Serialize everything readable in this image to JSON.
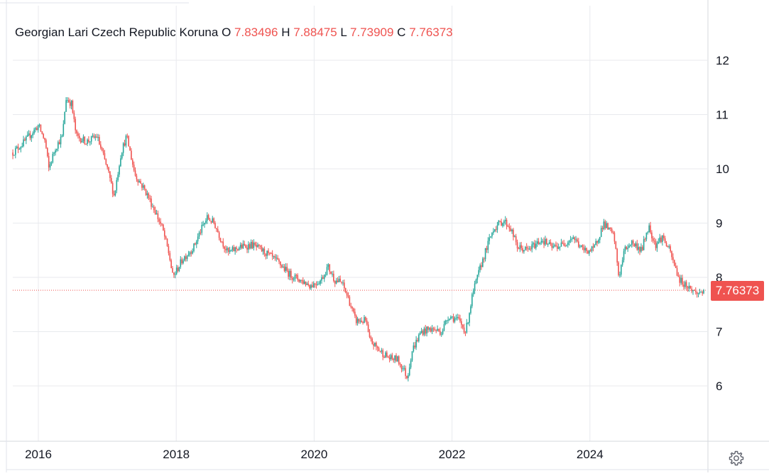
{
  "legend": {
    "symbol": "Georgian Lari Czech Republic Koruna",
    "o_label": "O",
    "o_value": "7.83496",
    "h_label": "H",
    "h_value": "7.88475",
    "l_label": "L",
    "l_value": "7.73909",
    "c_label": "C",
    "c_value": "7.76373"
  },
  "price_label": "7.76373",
  "colors": {
    "up": "#26a69a",
    "down": "#ef5350",
    "grid": "#e8eaee",
    "axis_text": "#131722"
  },
  "icons": {
    "settings": "gear-icon"
  },
  "chart_data": {
    "type": "candlestick",
    "title": "Georgian Lari Czech Republic Koruna",
    "last_close": 7.76373,
    "ylim": [
      5,
      13
    ],
    "xlim": [
      2015.63,
      2025.85
    ],
    "y_ticks": [
      6,
      7,
      8,
      9,
      10,
      11,
      12
    ],
    "x_ticks": [
      2016,
      2018,
      2020,
      2022,
      2024
    ],
    "x_tick_labels": [
      "2016",
      "2018",
      "2020",
      "2022",
      "2024"
    ],
    "grid": true,
    "series_path": [
      [
        2015.63,
        10.3
      ],
      [
        2015.8,
        10.5
      ],
      [
        2016.0,
        10.8
      ],
      [
        2016.1,
        10.5
      ],
      [
        2016.15,
        10.0
      ],
      [
        2016.25,
        10.4
      ],
      [
        2016.35,
        10.6
      ],
      [
        2016.4,
        11.3
      ],
      [
        2016.48,
        11.2
      ],
      [
        2016.55,
        10.6
      ],
      [
        2016.7,
        10.5
      ],
      [
        2016.85,
        10.6
      ],
      [
        2017.0,
        10.0
      ],
      [
        2017.1,
        9.5
      ],
      [
        2017.2,
        10.3
      ],
      [
        2017.28,
        10.6
      ],
      [
        2017.4,
        9.9
      ],
      [
        2017.55,
        9.6
      ],
      [
        2017.7,
        9.2
      ],
      [
        2017.8,
        8.9
      ],
      [
        2017.9,
        8.4
      ],
      [
        2017.95,
        8.0
      ],
      [
        2018.1,
        8.35
      ],
      [
        2018.25,
        8.55
      ],
      [
        2018.35,
        8.85
      ],
      [
        2018.45,
        9.1
      ],
      [
        2018.55,
        9.0
      ],
      [
        2018.65,
        8.7
      ],
      [
        2018.75,
        8.45
      ],
      [
        2018.9,
        8.55
      ],
      [
        2019.1,
        8.6
      ],
      [
        2019.3,
        8.45
      ],
      [
        2019.5,
        8.25
      ],
      [
        2019.65,
        8.05
      ],
      [
        2019.8,
        7.95
      ],
      [
        2019.95,
        7.85
      ],
      [
        2020.1,
        7.95
      ],
      [
        2020.2,
        8.2
      ],
      [
        2020.3,
        7.95
      ],
      [
        2020.4,
        7.9
      ],
      [
        2020.5,
        7.6
      ],
      [
        2020.6,
        7.2
      ],
      [
        2020.75,
        7.2
      ],
      [
        2020.8,
        6.85
      ],
      [
        2020.95,
        6.65
      ],
      [
        2021.1,
        6.5
      ],
      [
        2021.2,
        6.5
      ],
      [
        2021.3,
        6.3
      ],
      [
        2021.35,
        6.15
      ],
      [
        2021.42,
        6.65
      ],
      [
        2021.55,
        7.0
      ],
      [
        2021.7,
        7.05
      ],
      [
        2021.85,
        7.0
      ],
      [
        2021.95,
        7.3
      ],
      [
        2022.1,
        7.2
      ],
      [
        2022.2,
        7.0
      ],
      [
        2022.3,
        7.7
      ],
      [
        2022.45,
        8.35
      ],
      [
        2022.6,
        8.9
      ],
      [
        2022.75,
        9.05
      ],
      [
        2022.85,
        8.9
      ],
      [
        2022.95,
        8.55
      ],
      [
        2023.1,
        8.5
      ],
      [
        2023.3,
        8.7
      ],
      [
        2023.45,
        8.55
      ],
      [
        2023.6,
        8.6
      ],
      [
        2023.75,
        8.75
      ],
      [
        2023.9,
        8.5
      ],
      [
        2024.05,
        8.5
      ],
      [
        2024.2,
        9.0
      ],
      [
        2024.35,
        8.75
      ],
      [
        2024.42,
        8.0
      ],
      [
        2024.5,
        8.5
      ],
      [
        2024.6,
        8.65
      ],
      [
        2024.75,
        8.5
      ],
      [
        2024.85,
        8.95
      ],
      [
        2024.95,
        8.6
      ],
      [
        2025.05,
        8.75
      ],
      [
        2025.15,
        8.5
      ],
      [
        2025.3,
        7.95
      ],
      [
        2025.45,
        7.8
      ],
      [
        2025.55,
        7.7
      ],
      [
        2025.65,
        7.76
      ]
    ]
  }
}
